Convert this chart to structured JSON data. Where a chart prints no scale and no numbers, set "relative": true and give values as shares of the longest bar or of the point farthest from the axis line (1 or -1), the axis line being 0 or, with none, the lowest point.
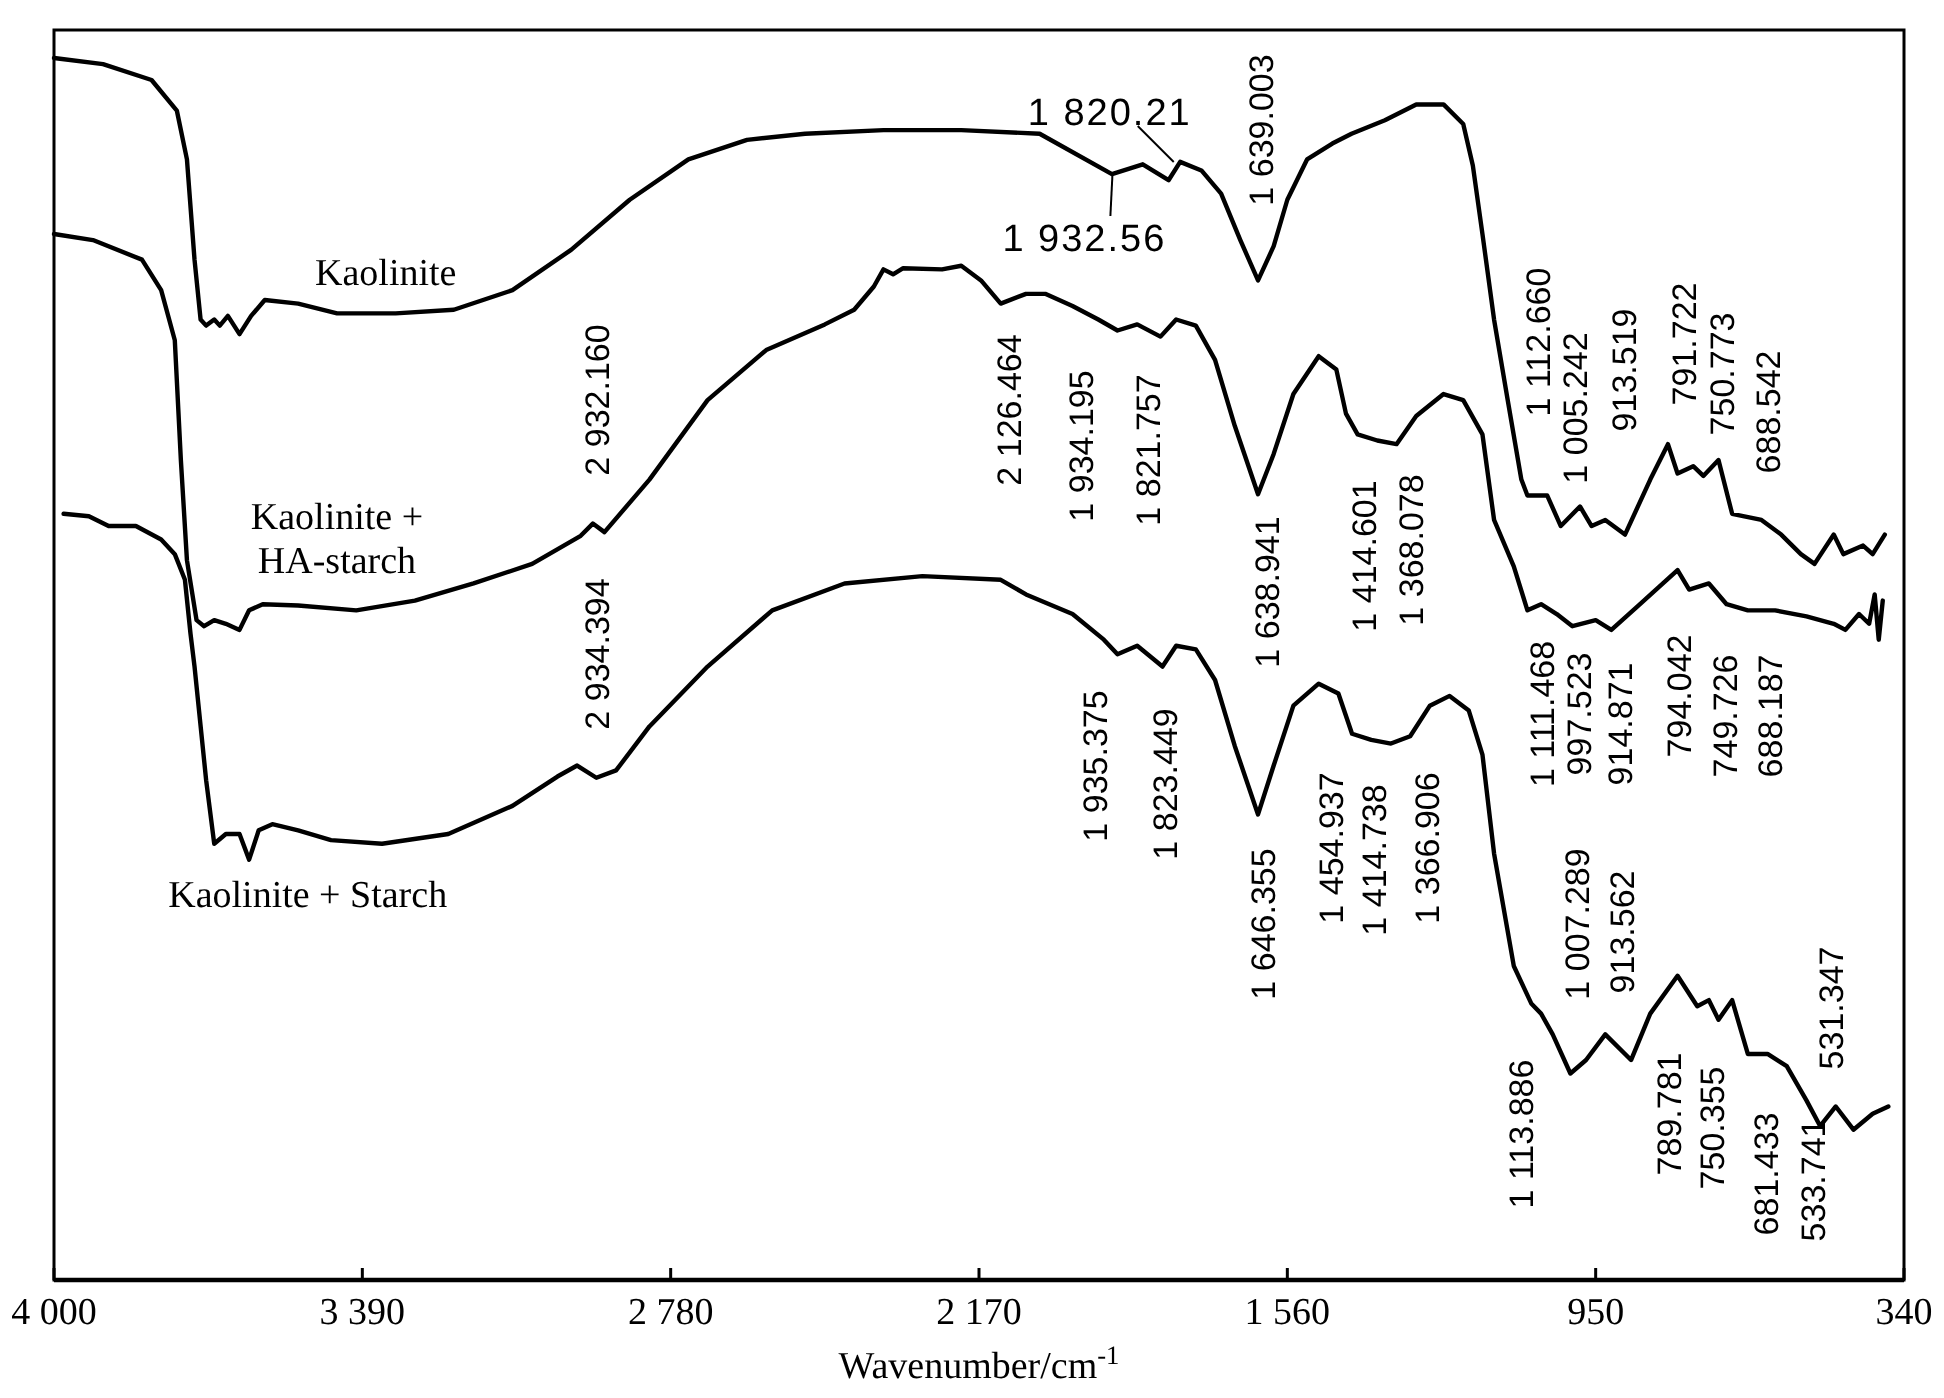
{
  "chart_data": {
    "type": "line",
    "relative": true,
    "xlabel": "Wavenumber/cm$^{-1}$",
    "xlim": [
      4000,
      340
    ],
    "xticks": [
      {
        "value": 4000,
        "label": "4 000"
      },
      {
        "value": 3390,
        "label": "3 390"
      },
      {
        "value": 2780,
        "label": "2 780"
      },
      {
        "value": 2170,
        "label": "2 170"
      },
      {
        "value": 1560,
        "label": "1 560"
      },
      950,
      340
    ],
    "series": [
      {
        "name": "Kaolinite",
        "color": "#000000",
        "x": [
          4000,
          3903,
          3807,
          3757,
          3737,
          3722,
          3710,
          3699,
          3683,
          3672,
          3656,
          3633,
          3610,
          3583,
          3517,
          3440,
          3324,
          3209,
          3093,
          2977,
          2861,
          2745,
          2629,
          2514,
          2359,
          2205,
          2050,
          1907,
          1846,
          1795,
          1772,
          1730,
          1691,
          1653,
          1618,
          1587,
          1560,
          1521,
          1471,
          1433,
          1367,
          1305,
          1251,
          1212,
          1193,
          1174,
          1151,
          1124,
          1097,
          1085,
          1046,
          1019,
          981,
          958,
          931,
          892,
          842,
          807,
          788,
          757,
          737,
          707,
          680,
          622,
          583,
          544,
          517,
          479,
          460,
          421,
          402,
          378
        ],
        "values": [
          1.0,
          0.995,
          0.982,
          0.957,
          0.917,
          0.835,
          0.786,
          0.781,
          0.786,
          0.781,
          0.789,
          0.774,
          0.789,
          0.802,
          0.799,
          0.791,
          0.791,
          0.794,
          0.81,
          0.843,
          0.884,
          0.917,
          0.933,
          0.938,
          0.941,
          0.941,
          0.938,
          0.905,
          0.913,
          0.9,
          0.915,
          0.908,
          0.889,
          0.851,
          0.818,
          0.846,
          0.884,
          0.917,
          0.93,
          0.938,
          0.949,
          0.962,
          0.962,
          0.946,
          0.912,
          0.856,
          0.786,
          0.72,
          0.655,
          0.642,
          0.642,
          0.617,
          0.633,
          0.617,
          0.622,
          0.61,
          0.655,
          0.684,
          0.66,
          0.666,
          0.658,
          0.671,
          0.627,
          0.622,
          0.61,
          0.594,
          0.586,
          0.61,
          0.594,
          0.601,
          0.594,
          0.61
        ]
      },
      {
        "name": "Kaolinite + HA-starch",
        "color": "#000000",
        "x": [
          4000,
          3923,
          3826,
          3788,
          3761,
          3749,
          3737,
          3718,
          3703,
          3683,
          3660,
          3633,
          3614,
          3587,
          3517,
          3402,
          3286,
          3170,
          3054,
          2958,
          2934,
          2911,
          2822,
          2707,
          2591,
          2475,
          2417,
          2378,
          2359,
          2340,
          2320,
          2243,
          2205,
          2166,
          2127,
          2077,
          2039,
          1985,
          1934,
          1896,
          1857,
          1811,
          1780,
          1741,
          1703,
          1664,
          1618,
          1587,
          1548,
          1498,
          1463,
          1444,
          1421,
          1382,
          1344,
          1305,
          1251,
          1212,
          1174,
          1151,
          1112,
          1085,
          1058,
          1027,
          996,
          950,
          919,
          865,
          788,
          765,
          726,
          691,
          649,
          595,
          533,
          479,
          456,
          429,
          409,
          398,
          390,
          382
        ],
        "values": [
          0.856,
          0.851,
          0.835,
          0.81,
          0.769,
          0.671,
          0.589,
          0.54,
          0.535,
          0.54,
          0.537,
          0.532,
          0.548,
          0.553,
          0.552,
          0.548,
          0.556,
          0.57,
          0.586,
          0.609,
          0.619,
          0.612,
          0.655,
          0.72,
          0.761,
          0.782,
          0.794,
          0.813,
          0.827,
          0.823,
          0.828,
          0.827,
          0.83,
          0.818,
          0.799,
          0.807,
          0.807,
          0.797,
          0.786,
          0.777,
          0.782,
          0.772,
          0.786,
          0.781,
          0.753,
          0.699,
          0.643,
          0.676,
          0.725,
          0.756,
          0.745,
          0.709,
          0.692,
          0.687,
          0.684,
          0.707,
          0.725,
          0.72,
          0.692,
          0.622,
          0.584,
          0.548,
          0.553,
          0.545,
          0.535,
          0.54,
          0.532,
          0.552,
          0.581,
          0.565,
          0.57,
          0.553,
          0.548,
          0.548,
          0.543,
          0.537,
          0.532,
          0.545,
          0.537,
          0.561,
          0.524,
          0.556
        ]
      },
      {
        "name": "Kaolinite + Starch",
        "color": "#000000",
        "x": [
          3981,
          3931,
          3892,
          3838,
          3788,
          3761,
          3741,
          3730,
          3722,
          3699,
          3683,
          3660,
          3633,
          3614,
          3595,
          3568,
          3517,
          3452,
          3351,
          3220,
          3093,
          3004,
          2965,
          2927,
          2888,
          2822,
          2707,
          2579,
          2436,
          2282,
          2127,
          2077,
          1985,
          1923,
          1896,
          1857,
          1807,
          1780,
          1741,
          1703,
          1664,
          1618,
          1587,
          1548,
          1498,
          1459,
          1432,
          1394,
          1355,
          1317,
          1278,
          1239,
          1201,
          1174,
          1151,
          1112,
          1077,
          1058,
          1035,
          1000,
          969,
          931,
          880,
          842,
          788,
          749,
          726,
          707,
          680,
          649,
          610,
          572,
          533,
          506,
          475,
          440,
          402,
          371
        ],
        "values": [
          0.627,
          0.625,
          0.617,
          0.617,
          0.606,
          0.594,
          0.573,
          0.529,
          0.502,
          0.409,
          0.357,
          0.365,
          0.365,
          0.344,
          0.368,
          0.373,
          0.368,
          0.36,
          0.357,
          0.365,
          0.388,
          0.412,
          0.421,
          0.411,
          0.417,
          0.453,
          0.502,
          0.548,
          0.57,
          0.576,
          0.573,
          0.561,
          0.545,
          0.524,
          0.512,
          0.519,
          0.502,
          0.519,
          0.516,
          0.491,
          0.437,
          0.381,
          0.421,
          0.47,
          0.488,
          0.48,
          0.447,
          0.442,
          0.439,
          0.445,
          0.47,
          0.478,
          0.466,
          0.43,
          0.349,
          0.257,
          0.226,
          0.218,
          0.201,
          0.169,
          0.18,
          0.201,
          0.18,
          0.218,
          0.249,
          0.224,
          0.229,
          0.213,
          0.229,
          0.185,
          0.185,
          0.175,
          0.147,
          0.126,
          0.142,
          0.123,
          0.136,
          0.142
        ]
      }
    ],
    "annotations": [
      "1 820.21",
      "1 932.56",
      "1 639.003",
      "2 932.160",
      "2 934.394",
      "2 126.464",
      "1 934.195",
      "1 821.757",
      "1 638.941",
      "1 414.601",
      "1 368.078",
      "1 112.660",
      "1 005.242",
      "913.519",
      "791.722",
      "750.773",
      "688.542",
      "1 111.468",
      "997.523",
      "914.871",
      "794.042",
      "749.726",
      "688.187",
      "1 935.375",
      "1 823.449",
      "1 646.355",
      "1 454.937",
      "1 414.738",
      "1 366.906",
      "1 113.886",
      "1 007.289",
      "913.562",
      "789.781",
      "750.355",
      "681.433",
      "533.741",
      "531.347"
    ]
  }
}
